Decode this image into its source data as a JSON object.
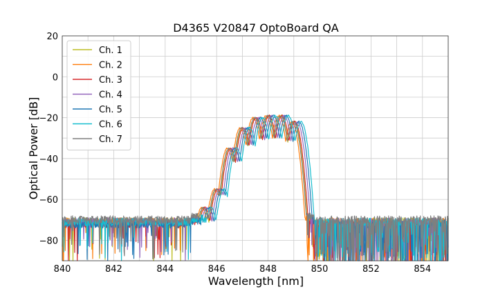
{
  "chart_data": {
    "type": "line",
    "title": "D4365 V20847 OptoBoard QA",
    "xlabel": "Wavelength [nm]",
    "ylabel": "Optical Power [dB]",
    "xlim": [
      840,
      855
    ],
    "ylim": [
      -90,
      20
    ],
    "xticks": [
      840,
      842,
      844,
      846,
      848,
      850,
      852,
      854
    ],
    "yticks": [
      20,
      0,
      -20,
      -40,
      -60,
      -80
    ],
    "grid": true,
    "legend_position": "top-left",
    "peak_wavelengths": [
      845.5,
      846.0,
      846.5,
      847.0,
      847.5,
      848.0,
      848.5,
      849.0
    ],
    "peak_levels": [
      -64,
      -55,
      -35,
      -25,
      -20,
      -19,
      -19,
      -22
    ],
    "series": [
      {
        "name": "Ch. 1",
        "color": "#bcbd22",
        "shift": 0.0,
        "noise_floor": -71
      },
      {
        "name": "Ch. 2",
        "color": "#ff7f0e",
        "shift": -0.08,
        "noise_floor": -71
      },
      {
        "name": "Ch. 3",
        "color": "#d62728",
        "shift": 0.04,
        "noise_floor": -72
      },
      {
        "name": "Ch. 4",
        "color": "#9467bd",
        "shift": 0.12,
        "noise_floor": -71
      },
      {
        "name": "Ch. 5",
        "color": "#1f77b4",
        "shift": 0.2,
        "noise_floor": -72
      },
      {
        "name": "Ch. 6",
        "color": "#17becf",
        "shift": 0.28,
        "noise_floor": -71
      },
      {
        "name": "Ch. 7",
        "color": "#7f7f7f",
        "shift": -0.02,
        "noise_floor": -70
      }
    ]
  }
}
